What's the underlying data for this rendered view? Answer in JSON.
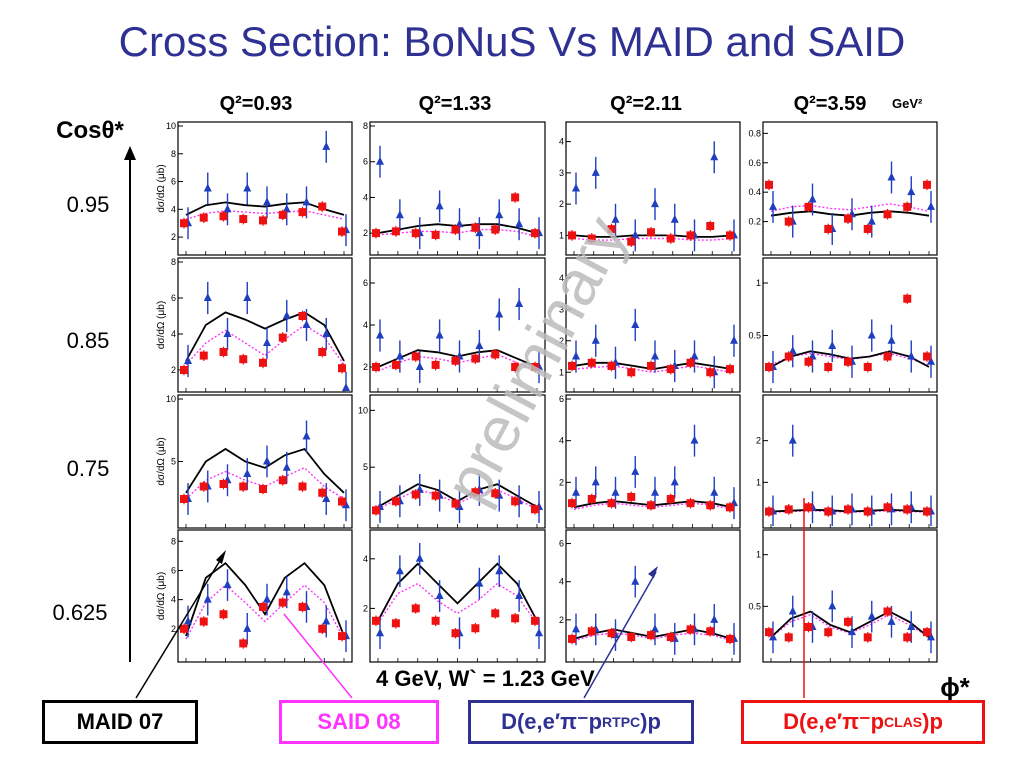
{
  "slide": {
    "title": "Cross Section: BoNuS Vs MAID and SAID",
    "caption": "4 GeV, W` = 1.23 GeV",
    "watermark": "preliminary",
    "y_axis_label": "Cosθ*",
    "x_axis_label": "ϕ*",
    "units_label": "GeV²",
    "panel_ylabel": "dσ/dΩ (μb)"
  },
  "legend": {
    "maid": "MAID 07",
    "said": "SAID 08",
    "rtpc_prefix": "D(e,e′π⁻p",
    "rtpc_sub": "RTPC",
    "rtpc_suffix": ")p",
    "clas_prefix": "D(e,e′π⁻p",
    "clas_sub": "CLAS",
    "clas_suffix": ")p"
  },
  "colors": {
    "title": "#2e3192",
    "rtpc": "#1f3fbf",
    "clas": "#ee1111",
    "maid": "#000000",
    "said": "#ff33ff"
  },
  "chart_data": {
    "type": "scatter",
    "columns": [
      "Q²=0.93",
      "Q²=1.33",
      "Q²=2.11",
      "Q²=3.59"
    ],
    "rows": [
      "0.95",
      "0.85",
      "0.75",
      "0.625"
    ],
    "x_range": [
      0,
      360
    ],
    "panels": [
      [
        {
          "ylim": [
            1,
            10
          ],
          "ticks": [
            2,
            4,
            6,
            8,
            10
          ],
          "maid": [
            3.6,
            4.3,
            4.5,
            4.3,
            4.2,
            4.4,
            4.5,
            4.0,
            3.6
          ],
          "said": [
            3.3,
            3.7,
            3.9,
            3.8,
            3.7,
            3.8,
            3.9,
            3.6,
            3.3
          ],
          "rtpc": [
            3.0,
            5.5,
            4.0,
            5.5,
            4.5,
            4.0,
            4.5,
            8.5,
            2.5
          ],
          "clas": [
            3.0,
            3.4,
            3.5,
            3.3,
            3.2,
            3.6,
            3.8,
            4.2,
            2.4
          ]
        },
        {
          "ylim": [
            1,
            8
          ],
          "ticks": [
            2,
            4,
            6,
            8
          ],
          "maid": [
            2.0,
            2.2,
            2.4,
            2.5,
            2.4,
            2.5,
            2.5,
            2.3,
            2.0
          ],
          "said": [
            1.9,
            2.0,
            2.1,
            2.1,
            2.0,
            2.2,
            2.2,
            2.1,
            1.8
          ],
          "rtpc": [
            6.0,
            3.0,
            2.0,
            3.5,
            2.5,
            2.0,
            3.0,
            2.5,
            2.0
          ],
          "clas": [
            2.0,
            2.1,
            2.0,
            1.9,
            2.2,
            2.3,
            2.2,
            4.0,
            2.0
          ]
        },
        {
          "ylim": [
            0.5,
            4.5
          ],
          "ticks": [
            1,
            2,
            3,
            4
          ],
          "maid": [
            1.0,
            0.95,
            0.95,
            1.0,
            1.0,
            1.0,
            0.95,
            0.95,
            1.0
          ],
          "said": [
            0.9,
            0.85,
            0.85,
            0.9,
            0.9,
            0.9,
            0.85,
            0.85,
            0.9
          ],
          "rtpc": [
            2.5,
            3.0,
            1.5,
            1.0,
            2.0,
            1.5,
            1.0,
            3.5,
            1.0
          ],
          "clas": [
            1.0,
            0.9,
            1.2,
            0.8,
            1.1,
            0.9,
            1.0,
            1.3,
            1.0
          ]
        },
        {
          "ylim": [
            0,
            0.85
          ],
          "ticks": [
            0.2,
            0.4,
            0.6,
            0.8
          ],
          "maid": [
            0.24,
            0.26,
            0.27,
            0.25,
            0.24,
            0.26,
            0.27,
            0.26,
            0.24
          ],
          "said": [
            0.27,
            0.3,
            0.31,
            0.29,
            0.28,
            0.3,
            0.32,
            0.3,
            0.27
          ],
          "rtpc": [
            0.3,
            0.2,
            0.35,
            0.15,
            0.25,
            0.2,
            0.5,
            0.4,
            0.3
          ],
          "clas": [
            0.45,
            0.2,
            0.3,
            0.15,
            0.22,
            0.15,
            0.25,
            0.3,
            0.45
          ]
        }
      ],
      [
        {
          "ylim": [
            1,
            8
          ],
          "ticks": [
            2,
            4,
            6,
            8
          ],
          "maid": [
            2.5,
            4.5,
            5.2,
            4.8,
            4.3,
            4.8,
            5.2,
            4.5,
            2.5
          ],
          "said": [
            2.3,
            3.5,
            4.2,
            3.5,
            2.8,
            3.7,
            4.5,
            3.8,
            2.3
          ],
          "rtpc": [
            2.5,
            6.0,
            4.0,
            6.0,
            3.5,
            5.0,
            4.5,
            4.0,
            1.0
          ],
          "clas": [
            2.0,
            2.8,
            3.0,
            2.6,
            2.4,
            3.8,
            5.0,
            3.0,
            2.1
          ]
        },
        {
          "ylim": [
            1,
            7
          ],
          "ticks": [
            2,
            4,
            6
          ],
          "maid": [
            2.0,
            2.4,
            2.8,
            2.7,
            2.5,
            2.7,
            2.8,
            2.4,
            2.0
          ],
          "said": [
            1.8,
            2.2,
            2.5,
            2.4,
            2.2,
            2.4,
            2.6,
            2.2,
            1.8
          ],
          "rtpc": [
            3.5,
            2.5,
            2.0,
            3.5,
            2.5,
            3.0,
            4.5,
            5.0,
            2.0
          ],
          "clas": [
            2.0,
            2.1,
            2.5,
            2.1,
            2.3,
            2.4,
            2.6,
            2.0,
            2.0
          ]
        },
        {
          "ylim": [
            0.5,
            4.5
          ],
          "ticks": [
            1,
            2,
            3,
            4
          ],
          "maid": [
            1.2,
            1.3,
            1.3,
            1.2,
            1.1,
            1.2,
            1.3,
            1.2,
            1.1
          ],
          "said": [
            1.1,
            1.15,
            1.2,
            1.1,
            1.0,
            1.1,
            1.2,
            1.1,
            1.0
          ],
          "rtpc": [
            1.5,
            2.0,
            1.3,
            2.5,
            1.5,
            1.2,
            1.5,
            1.0,
            2.0
          ],
          "clas": [
            1.2,
            1.3,
            1.2,
            1.0,
            1.2,
            1.1,
            1.3,
            1.0,
            1.1
          ]
        },
        {
          "ylim": [
            0,
            1.2
          ],
          "ticks": [
            0.5,
            1
          ],
          "maid": [
            0.2,
            0.3,
            0.35,
            0.32,
            0.28,
            0.3,
            0.35,
            0.3,
            0.2
          ],
          "said": [
            0.22,
            0.3,
            0.33,
            0.3,
            0.27,
            0.3,
            0.33,
            0.28,
            0.22
          ],
          "rtpc": [
            0.2,
            0.35,
            0.3,
            0.4,
            0.25,
            0.5,
            0.45,
            0.3,
            0.25
          ],
          "clas": [
            0.2,
            0.3,
            0.25,
            0.2,
            0.25,
            0.2,
            0.3,
            0.85,
            0.3
          ]
        }
      ],
      [
        {
          "ylim": [
            0,
            10
          ],
          "ticks": [
            5,
            10
          ],
          "maid": [
            2.5,
            5.0,
            6.0,
            5.0,
            4.5,
            5.5,
            6.0,
            4.0,
            2.5
          ],
          "said": [
            2.0,
            3.5,
            4.2,
            3.5,
            3.0,
            3.8,
            4.5,
            3.0,
            2.0
          ],
          "rtpc": [
            2.0,
            3.0,
            3.5,
            4.0,
            5.0,
            4.5,
            7.0,
            2.0,
            1.5
          ],
          "clas": [
            2.0,
            3.0,
            3.2,
            3.0,
            2.8,
            3.5,
            3.0,
            2.5,
            1.8
          ]
        },
        {
          "ylim": [
            0,
            11
          ],
          "ticks": [
            5,
            10
          ],
          "maid": [
            1.5,
            2.5,
            3.5,
            3.0,
            2.0,
            3.0,
            3.5,
            2.5,
            1.5
          ],
          "said": [
            1.3,
            2.2,
            3.0,
            2.6,
            1.8,
            2.6,
            3.0,
            2.2,
            1.3
          ],
          "rtpc": [
            1.5,
            2.0,
            3.0,
            2.5,
            1.5,
            3.0,
            2.5,
            2.0,
            1.5
          ],
          "clas": [
            1.2,
            2.0,
            2.6,
            2.5,
            1.8,
            2.8,
            2.7,
            2.0,
            1.3
          ]
        },
        {
          "ylim": [
            0,
            6
          ],
          "ticks": [
            2,
            4,
            6
          ],
          "maid": [
            0.8,
            1.0,
            1.1,
            1.0,
            0.9,
            1.0,
            1.1,
            1.0,
            0.8
          ],
          "said": [
            0.7,
            0.9,
            1.0,
            0.9,
            0.8,
            0.9,
            1.0,
            0.9,
            0.7
          ],
          "rtpc": [
            1.5,
            2.0,
            1.5,
            2.5,
            1.5,
            2.0,
            4.0,
            1.5,
            1.0
          ],
          "clas": [
            1.0,
            1.2,
            1.0,
            1.3,
            0.9,
            1.2,
            1.0,
            0.9,
            0.8
          ]
        },
        {
          "ylim": [
            0,
            3
          ],
          "ticks": [
            1,
            2
          ],
          "maid": [
            0.3,
            0.32,
            0.34,
            0.33,
            0.3,
            0.32,
            0.34,
            0.32,
            0.3
          ],
          "said": [
            0.28,
            0.3,
            0.32,
            0.3,
            0.28,
            0.3,
            0.32,
            0.3,
            0.28
          ],
          "rtpc": [
            0.3,
            2.0,
            0.4,
            0.3,
            0.35,
            0.3,
            0.35,
            0.4,
            0.3
          ],
          "clas": [
            0.3,
            0.35,
            0.4,
            0.3,
            0.35,
            0.3,
            0.4,
            0.35,
            0.3
          ]
        }
      ],
      [
        {
          "ylim": [
            0,
            8.5
          ],
          "ticks": [
            2,
            4,
            6,
            8
          ],
          "maid": [
            1.5,
            5.5,
            6.5,
            5.0,
            3.0,
            5.5,
            6.5,
            5.0,
            1.5
          ],
          "said": [
            1.3,
            3.8,
            5.0,
            3.8,
            2.5,
            3.8,
            5.0,
            3.8,
            1.3
          ],
          "rtpc": [
            2.5,
            4.0,
            5.0,
            2.0,
            4.0,
            4.5,
            3.5,
            2.5,
            1.5
          ],
          "clas": [
            2.0,
            2.5,
            3.0,
            1.0,
            3.5,
            3.8,
            3.5,
            2.0,
            1.5
          ]
        },
        {
          "ylim": [
            0,
            5
          ],
          "ticks": [
            2,
            4
          ],
          "maid": [
            1.5,
            3.0,
            3.8,
            3.0,
            2.2,
            3.0,
            3.8,
            3.0,
            1.5
          ],
          "said": [
            1.4,
            2.6,
            3.0,
            2.3,
            1.8,
            2.3,
            3.0,
            2.5,
            1.4
          ],
          "rtpc": [
            1.0,
            3.5,
            4.0,
            2.5,
            1.0,
            3.0,
            3.5,
            2.5,
            1.0
          ],
          "clas": [
            1.5,
            1.4,
            2.0,
            1.5,
            1.0,
            1.2,
            1.8,
            1.6,
            1.5
          ]
        },
        {
          "ylim": [
            0,
            6.5
          ],
          "ticks": [
            2,
            4,
            6
          ],
          "maid": [
            1.0,
            1.3,
            1.5,
            1.3,
            1.1,
            1.3,
            1.5,
            1.3,
            1.0
          ],
          "said": [
            0.9,
            1.2,
            1.3,
            1.2,
            1.0,
            1.2,
            1.3,
            1.2,
            0.9
          ],
          "rtpc": [
            1.5,
            1.5,
            1.2,
            4.0,
            1.5,
            1.0,
            1.5,
            2.0,
            1.0
          ],
          "clas": [
            1.0,
            1.4,
            1.3,
            1.1,
            1.2,
            1.1,
            1.5,
            1.4,
            1.0
          ]
        },
        {
          "ylim": [
            0,
            1.2
          ],
          "ticks": [
            0.5,
            1
          ],
          "maid": [
            0.2,
            0.38,
            0.45,
            0.32,
            0.25,
            0.35,
            0.45,
            0.35,
            0.2
          ],
          "said": [
            0.2,
            0.35,
            0.42,
            0.3,
            0.24,
            0.32,
            0.42,
            0.32,
            0.2
          ],
          "rtpc": [
            0.2,
            0.45,
            0.3,
            0.5,
            0.25,
            0.4,
            0.35,
            0.3,
            0.2
          ],
          "clas": [
            0.25,
            0.2,
            0.3,
            0.25,
            0.35,
            0.2,
            0.45,
            0.2,
            0.25
          ]
        }
      ]
    ]
  }
}
